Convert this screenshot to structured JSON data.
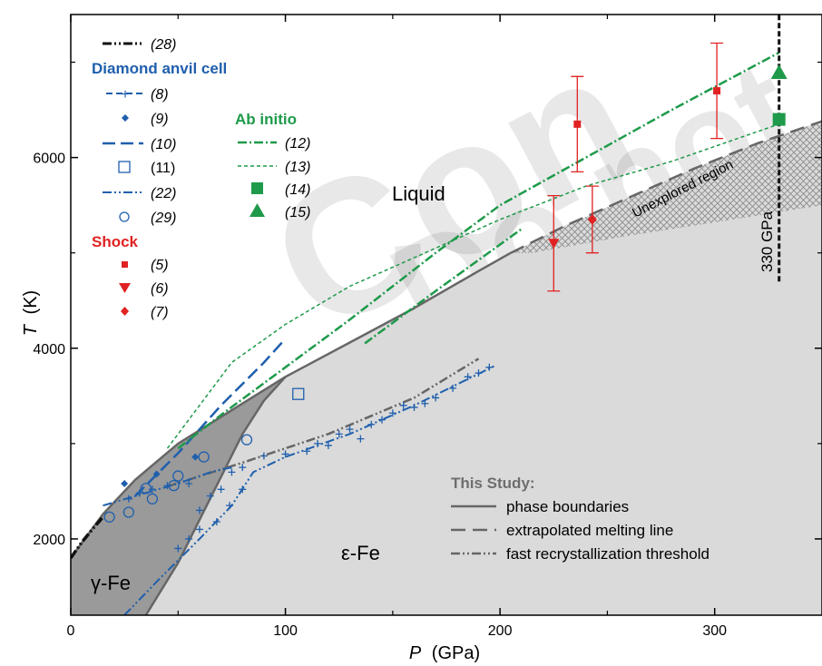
{
  "chart_data": {
    "type": "scatter",
    "xlabel_var": "P",
    "xlabel_unit": "(GPa)",
    "ylabel_var": "T",
    "ylabel_unit": "(K)",
    "xlim": [
      0,
      350
    ],
    "ylim": [
      1200,
      7500
    ],
    "x_ticks": [
      0,
      100,
      200,
      300
    ],
    "y_ticks": [
      2000,
      4000,
      6000
    ],
    "watermark": [
      "Con",
      "Do not"
    ],
    "regions": {
      "liquid": "Liquid",
      "gamma": "γ-Fe",
      "epsilon": "ε-Fe",
      "unexplored": "Unexplored region",
      "marker": "330 GPa"
    },
    "colors": {
      "black": "#111111",
      "dac": "#1f5fad",
      "abinitio": "#1e9a4a",
      "shock": "#e02222",
      "study": "#666666",
      "fill_light": "#dadada",
      "fill_dark": "#9a9a9a"
    },
    "legend": {
      "ref28": "(28)",
      "dac_header": "Diamond anvil cell",
      "dac_items": [
        "(8)",
        "(9)",
        "(10)",
        "(11)",
        "(22)",
        "(29)"
      ],
      "shock_header": "Shock",
      "shock_items": [
        "(5)",
        "(6)",
        "(7)"
      ],
      "abinitio_header": "Ab initio",
      "abinitio_items": [
        "(12)",
        "(13)",
        "(14)",
        "(15)"
      ],
      "study_header": "This Study:",
      "study_items": [
        "phase boundaries",
        "extrapolated melting line",
        "fast recrystallization threshold"
      ]
    },
    "series": {
      "ref28_line": [
        [
          0,
          1800
        ],
        [
          5,
          1960
        ],
        [
          10,
          2100
        ],
        [
          15,
          2230
        ]
      ],
      "melting_curve": [
        [
          15,
          2260
        ],
        [
          30,
          2620
        ],
        [
          50,
          3000
        ],
        [
          75,
          3350
        ],
        [
          100,
          3700
        ],
        [
          130,
          4060
        ],
        [
          160,
          4420
        ],
        [
          190,
          4810
        ],
        [
          205,
          5000
        ]
      ],
      "melting_extrap": [
        [
          205,
          5000
        ],
        [
          230,
          5280
        ],
        [
          260,
          5580
        ],
        [
          290,
          5880
        ],
        [
          320,
          6150
        ],
        [
          350,
          6380
        ]
      ],
      "gamma_eps_boundary": [
        [
          35,
          1200
        ],
        [
          50,
          1750
        ],
        [
          60,
          2200
        ],
        [
          70,
          2650
        ],
        [
          80,
          3100
        ],
        [
          90,
          3450
        ],
        [
          100,
          3700
        ]
      ],
      "gamma_left_boundary": [
        [
          0,
          1800
        ],
        [
          15,
          2260
        ]
      ],
      "recryst_threshold": [
        [
          45,
          2550
        ],
        [
          80,
          2800
        ],
        [
          120,
          3100
        ],
        [
          160,
          3480
        ],
        [
          190,
          3890
        ]
      ],
      "dac_10": [
        [
          30,
          2450
        ],
        [
          50,
          2900
        ],
        [
          70,
          3400
        ],
        [
          90,
          3850
        ],
        [
          100,
          4100
        ]
      ],
      "dac_22_upper": [
        [
          15,
          2350
        ],
        [
          30,
          2450
        ],
        [
          50,
          2580
        ],
        [
          65,
          2700
        ],
        [
          75,
          2750
        ]
      ],
      "dac_22_lower": [
        [
          25,
          1200
        ],
        [
          40,
          1550
        ],
        [
          60,
          2000
        ],
        [
          75,
          2350
        ],
        [
          85,
          2700
        ],
        [
          100,
          2860
        ],
        [
          130,
          3100
        ],
        [
          160,
          3400
        ],
        [
          198,
          3820
        ]
      ],
      "dac_8_points": [
        [
          27,
          2420
        ],
        [
          32,
          2480
        ],
        [
          38,
          2520
        ],
        [
          45,
          2560
        ],
        [
          55,
          2580
        ],
        [
          60,
          2300
        ],
        [
          65,
          2450
        ],
        [
          70,
          2520
        ],
        [
          75,
          2700
        ],
        [
          80,
          2750
        ],
        [
          90,
          2870
        ],
        [
          100,
          2890
        ],
        [
          110,
          2920
        ],
        [
          115,
          3000
        ],
        [
          120,
          2980
        ],
        [
          125,
          3100
        ],
        [
          130,
          3150
        ],
        [
          135,
          3050
        ],
        [
          140,
          3200
        ],
        [
          145,
          3250
        ],
        [
          150,
          3320
        ],
        [
          155,
          3400
        ],
        [
          160,
          3380
        ],
        [
          165,
          3420
        ],
        [
          170,
          3480
        ],
        [
          178,
          3580
        ],
        [
          185,
          3700
        ],
        [
          190,
          3740
        ],
        [
          195,
          3800
        ],
        [
          50,
          1900
        ],
        [
          55,
          2000
        ],
        [
          60,
          2100
        ],
        [
          68,
          2180
        ],
        [
          74,
          2350
        ],
        [
          80,
          2520
        ]
      ],
      "dac_9_points": [
        [
          25,
          2580
        ],
        [
          40,
          2680
        ],
        [
          58,
          2860
        ]
      ],
      "dac_11_points": [
        [
          106,
          3520
        ]
      ],
      "dac_29_points": [
        [
          18,
          2230
        ],
        [
          27,
          2280
        ],
        [
          38,
          2420
        ],
        [
          48,
          2560
        ],
        [
          50,
          2660
        ],
        [
          62,
          2860
        ],
        [
          82,
          3040
        ],
        [
          35,
          2530
        ]
      ],
      "abinitio_12": [
        [
          50,
          2950
        ],
        [
          70,
          3300
        ],
        [
          100,
          3800
        ],
        [
          130,
          4300
        ],
        [
          170,
          5000
        ],
        [
          200,
          5500
        ],
        [
          240,
          6000
        ],
        [
          280,
          6500
        ],
        [
          330,
          7100
        ]
      ],
      "abinitio_12_low": [
        [
          137,
          4050
        ],
        [
          170,
          4600
        ],
        [
          210,
          5250
        ]
      ],
      "abinitio_13": [
        [
          45,
          2950
        ],
        [
          60,
          3400
        ],
        [
          75,
          3850
        ],
        [
          100,
          4250
        ],
        [
          130,
          4650
        ],
        [
          160,
          4950
        ],
        [
          200,
          5350
        ],
        [
          240,
          5700
        ],
        [
          280,
          5960
        ],
        [
          330,
          6350
        ]
      ],
      "abinitio_14": [
        [
          330,
          6400
        ]
      ],
      "abinitio_15": [
        [
          330,
          6900
        ]
      ],
      "shock_5": [
        {
          "x": 236,
          "y": 6350,
          "err": 500
        },
        {
          "x": 301,
          "y": 6700,
          "err": 500
        }
      ],
      "shock_6": [
        {
          "x": 225,
          "y": 5100,
          "err": 500
        }
      ],
      "shock_7": [
        {
          "x": 243,
          "y": 5350,
          "err": 350
        }
      ],
      "marker_330": [
        [
          330,
          4700
        ],
        [
          330,
          7500
        ]
      ]
    }
  }
}
